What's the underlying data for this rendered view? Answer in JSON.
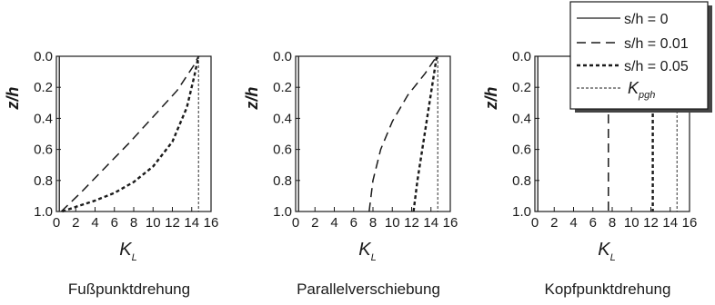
{
  "chart_data": [
    {
      "type": "line",
      "caption": "Fußpunktdrehung",
      "xlabel": "K",
      "xlabel_sub": "L",
      "ylabel": "z/h",
      "xlim": [
        0,
        16
      ],
      "ylim": [
        1.0,
        0.0
      ],
      "x_ticks": [
        "0",
        "2",
        "4",
        "6",
        "8",
        "10",
        "12",
        "14",
        "16"
      ],
      "y_ticks": [
        "0.0",
        "0.2",
        "0.4",
        "0.6",
        "0.8",
        "1.0"
      ],
      "series": [
        {
          "name": "s/h = 0",
          "style": "solid",
          "points": [
            [
              0.3,
              0.0
            ],
            [
              0.3,
              1.0
            ]
          ]
        },
        {
          "name": "s/h = 0.01",
          "style": "dash",
          "points": [
            [
              0.5,
              1.0
            ],
            [
              2.5,
              0.88
            ],
            [
              5.0,
              0.72
            ],
            [
              7.5,
              0.56
            ],
            [
              10.0,
              0.39
            ],
            [
              12.5,
              0.22
            ],
            [
              14.2,
              0.06
            ],
            [
              14.7,
              0.0
            ]
          ]
        },
        {
          "name": "s/h = 0.05",
          "style": "short-dash",
          "points": [
            [
              0.6,
              1.0
            ],
            [
              2.0,
              0.97
            ],
            [
              4.0,
              0.93
            ],
            [
              6.0,
              0.88
            ],
            [
              8.0,
              0.81
            ],
            [
              10.0,
              0.71
            ],
            [
              12.0,
              0.55
            ],
            [
              13.5,
              0.33
            ],
            [
              14.3,
              0.12
            ],
            [
              14.7,
              0.0
            ]
          ]
        },
        {
          "name": "K_pgh",
          "style": "fine-dash",
          "points": [
            [
              14.7,
              0.0
            ],
            [
              14.7,
              1.0
            ]
          ]
        }
      ]
    },
    {
      "type": "line",
      "caption": "Parallelverschiebung",
      "xlabel": "K",
      "xlabel_sub": "L",
      "ylabel": "z/h",
      "xlim": [
        0,
        16
      ],
      "ylim": [
        1.0,
        0.0
      ],
      "x_ticks": [
        "0",
        "2",
        "4",
        "6",
        "8",
        "10",
        "12",
        "14",
        "16"
      ],
      "y_ticks": [
        "0.0",
        "0.2",
        "0.4",
        "0.6",
        "0.8",
        "1.0"
      ],
      "series": [
        {
          "name": "s/h = 0",
          "style": "solid",
          "points": [
            [
              0.3,
              0.0
            ],
            [
              0.3,
              1.0
            ]
          ]
        },
        {
          "name": "s/h = 0.01",
          "style": "dash",
          "points": [
            [
              7.6,
              1.0
            ],
            [
              8.0,
              0.8
            ],
            [
              8.8,
              0.6
            ],
            [
              10.0,
              0.42
            ],
            [
              11.6,
              0.25
            ],
            [
              13.4,
              0.11
            ],
            [
              14.6,
              0.0
            ]
          ]
        },
        {
          "name": "s/h = 0.05",
          "style": "short-dash",
          "points": [
            [
              12.2,
              1.0
            ],
            [
              12.6,
              0.8
            ],
            [
              13.1,
              0.6
            ],
            [
              13.6,
              0.4
            ],
            [
              14.1,
              0.2
            ],
            [
              14.6,
              0.0
            ]
          ]
        },
        {
          "name": "K_pgh",
          "style": "fine-dash",
          "points": [
            [
              14.7,
              0.0
            ],
            [
              14.7,
              1.0
            ]
          ]
        }
      ]
    },
    {
      "type": "line",
      "caption": "Kopfpunktdrehung",
      "xlabel": "K",
      "xlabel_sub": "L",
      "ylabel": "z/h",
      "xlim": [
        0,
        16
      ],
      "ylim": [
        1.0,
        0.0
      ],
      "x_ticks": [
        "0",
        "2",
        "4",
        "6",
        "8",
        "10",
        "12",
        "14",
        "16"
      ],
      "y_ticks": [
        "0.0",
        "0.2",
        "0.4",
        "0.6",
        "0.8",
        "1.0"
      ],
      "series": [
        {
          "name": "s/h = 0",
          "style": "solid",
          "points": [
            [
              0.3,
              0.0
            ],
            [
              0.3,
              1.0
            ]
          ]
        },
        {
          "name": "s/h = 0.01",
          "style": "dash",
          "points": [
            [
              7.6,
              0.0
            ],
            [
              7.6,
              1.0
            ]
          ]
        },
        {
          "name": "s/h = 0.05",
          "style": "short-dash",
          "points": [
            [
              12.2,
              0.0
            ],
            [
              12.2,
              1.0
            ]
          ]
        },
        {
          "name": "K_pgh",
          "style": "fine-dash",
          "points": [
            [
              14.7,
              0.0
            ],
            [
              14.7,
              1.0
            ]
          ]
        }
      ]
    }
  ],
  "legend": {
    "entries": [
      {
        "text": "s/h = 0",
        "style": "solid"
      },
      {
        "text": "s/h = 0.01",
        "style": "dash"
      },
      {
        "text": "s/h = 0.05",
        "style": "short-dash"
      },
      {
        "main": "K",
        "sub": "pgh",
        "style": "fine-dash"
      }
    ]
  },
  "colors": {
    "ink": "#1a1a1a",
    "background": "#ffffff",
    "legend_shadow": "#444444"
  }
}
